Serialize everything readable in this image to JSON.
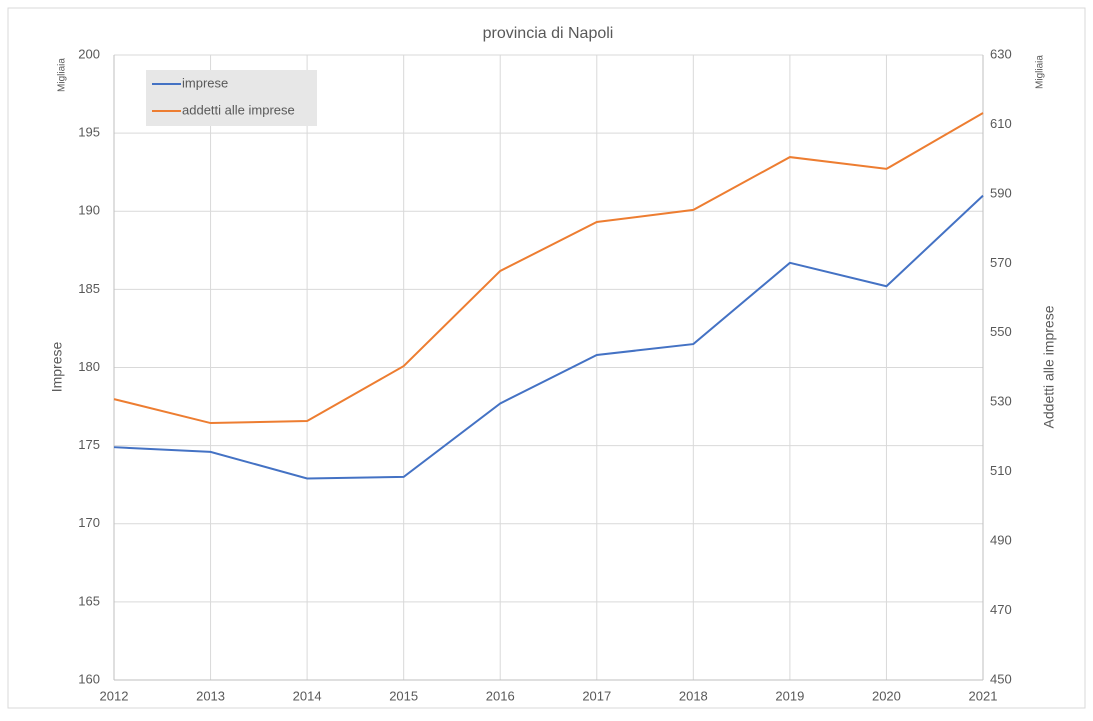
{
  "chart_data": {
    "type": "line",
    "title": "provincia di Napoli",
    "y_label": "Imprese",
    "y2_label": "Addetti alle imprese",
    "y_unit": "Migliaia",
    "y2_unit": "Migliaia",
    "x": [
      2012,
      2013,
      2014,
      2015,
      2016,
      2017,
      2018,
      2019,
      2020,
      2021
    ],
    "xlim": [
      2012,
      2021
    ],
    "xticks": [
      2012,
      2013,
      2014,
      2015,
      2016,
      2017,
      2018,
      2019,
      2020,
      2021
    ],
    "ylim": [
      160,
      200
    ],
    "yticks": [
      160,
      165,
      170,
      175,
      180,
      185,
      190,
      195,
      200
    ],
    "y2lim": [
      450,
      630
    ],
    "y2ticks": [
      450,
      470,
      490,
      510,
      530,
      550,
      570,
      590,
      610,
      630
    ],
    "grid": true,
    "legend": "upper left",
    "series": [
      {
        "name": "imprese",
        "color": "#4472c4",
        "values": [
          174.9,
          174.6,
          172.9,
          173.0,
          177.7,
          180.8,
          181.5,
          186.7,
          185.2,
          191.0
        ]
      },
      {
        "name": "addetti alle imprese",
        "color": "#ed7d31",
        "axis": "y2",
        "values": [
          530.9,
          524.0,
          524.6,
          540.4,
          567.8,
          581.9,
          585.4,
          600.6,
          597.2,
          613.3
        ]
      }
    ]
  }
}
